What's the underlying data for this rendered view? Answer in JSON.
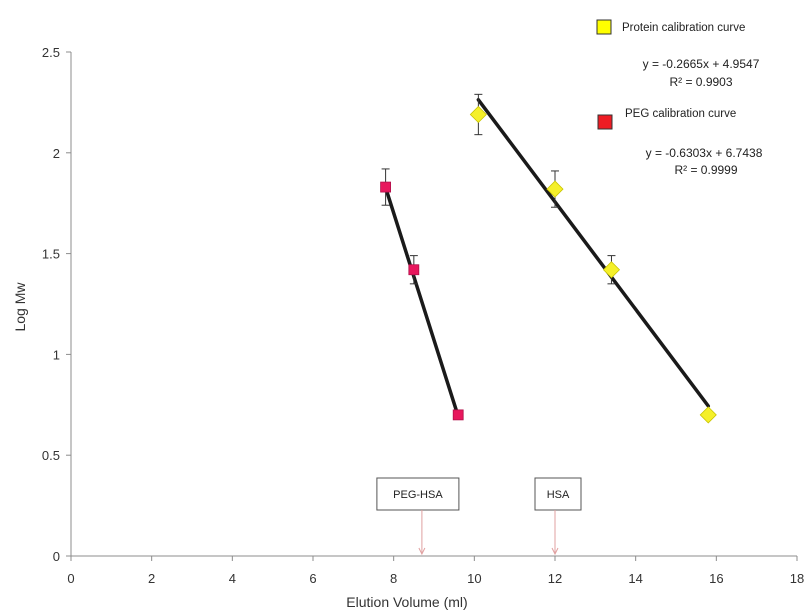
{
  "chart_data": {
    "type": "scatter",
    "xlabel": "Elution Volume (ml)",
    "ylabel": "Log Mw",
    "xlim": [
      0,
      18
    ],
    "ylim": [
      0,
      2.5
    ],
    "x_ticks": [
      0,
      2,
      4,
      6,
      8,
      10,
      12,
      14,
      16,
      18
    ],
    "y_ticks": [
      0,
      0.5,
      1,
      1.5,
      2,
      2.5
    ],
    "x_tick_labels": [
      "0",
      "2",
      "4",
      "6",
      "8",
      "10",
      "12",
      "14",
      "16",
      "18"
    ],
    "y_tick_labels": [
      "0",
      "0.5",
      "1",
      "1.5",
      "2",
      "2.5"
    ],
    "grid": false,
    "legend_position": "top-right",
    "series": [
      {
        "name": "PEG calibration curve",
        "marker": "square",
        "color": "#e8175d",
        "points": [
          {
            "x": 7.8,
            "y": 1.83,
            "err": 0.09
          },
          {
            "x": 8.5,
            "y": 1.42,
            "err": 0.07
          },
          {
            "x": 9.6,
            "y": 0.7,
            "err": 0.0
          }
        ],
        "fit": {
          "slope": -0.6303,
          "intercept": 6.7438,
          "x_range": [
            7.8,
            9.6
          ]
        },
        "equation": "y = -0.6303x + 6.7438",
        "r2": "R² = 0.9999"
      },
      {
        "name": "Protein calibration curve",
        "marker": "diamond",
        "color": "#f5f02a",
        "points": [
          {
            "x": 10.1,
            "y": 2.19,
            "err": 0.1
          },
          {
            "x": 12.0,
            "y": 1.82,
            "err": 0.09
          },
          {
            "x": 13.4,
            "y": 1.42,
            "err": 0.07
          },
          {
            "x": 15.8,
            "y": 0.7,
            "err": 0.0
          }
        ],
        "fit": {
          "slope": -0.2665,
          "intercept": 4.9547,
          "x_range": [
            10.1,
            15.8
          ]
        },
        "equation": "y = -0.2665x + 4.9547",
        "r2": "R² = 0.9903"
      }
    ],
    "legend": [
      {
        "label": "Protein calibration curve",
        "color": "#ffff00",
        "marker": "square"
      },
      {
        "label": "PEG calibration curve",
        "color": "#ee1c24",
        "marker": "square"
      }
    ],
    "annotations": [
      {
        "label": "PEG-HSA",
        "x": 8.7,
        "y": 0
      },
      {
        "label": "HSA",
        "x": 12.0,
        "y": 0
      }
    ]
  }
}
